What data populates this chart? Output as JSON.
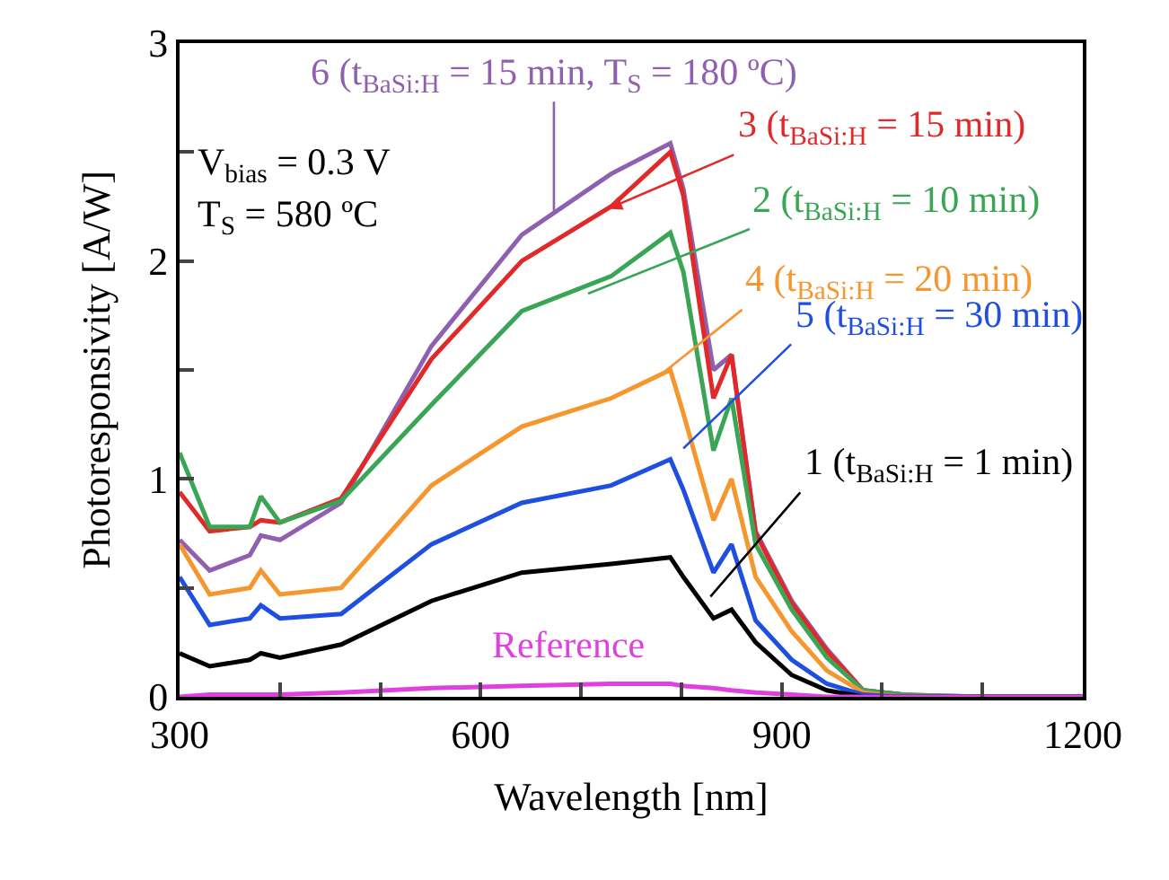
{
  "chart_data": {
    "type": "line",
    "xlabel": "Wavelength [nm]",
    "ylabel": "Photoresponsivity [A/W]",
    "x": [
      300,
      330,
      370,
      381,
      400,
      461,
      551,
      641,
      730,
      789,
      802,
      832,
      850,
      874,
      910,
      945,
      981,
      1020,
      1100,
      1200
    ],
    "series": [
      {
        "color": "#8f5fb0",
        "values": [
          0.72,
          0.58,
          0.65,
          0.74,
          0.72,
          0.89,
          1.61,
          2.12,
          2.4,
          2.54,
          2.33,
          1.5,
          1.57,
          0.76,
          0.44,
          0.22,
          0.03,
          0.01,
          0,
          0
        ]
      },
      {
        "color": "#e02a2a",
        "values": [
          0.94,
          0.76,
          0.78,
          0.81,
          0.8,
          0.91,
          1.55,
          2.0,
          2.25,
          2.5,
          2.3,
          1.37,
          1.57,
          0.75,
          0.43,
          0.21,
          0.03,
          0.01,
          null,
          null
        ]
      },
      {
        "color": "#3aa655",
        "values": [
          1.12,
          0.78,
          0.78,
          0.92,
          0.8,
          0.9,
          1.34,
          1.77,
          1.93,
          2.13,
          1.95,
          1.13,
          1.37,
          0.7,
          0.4,
          0.18,
          0.03,
          0.01,
          0,
          0
        ]
      },
      {
        "color": "#f5962e",
        "values": [
          0.7,
          0.47,
          0.5,
          0.58,
          0.47,
          0.5,
          0.97,
          1.24,
          1.37,
          1.5,
          1.3,
          0.81,
          1.0,
          0.55,
          0.3,
          0.12,
          0.02,
          0,
          0,
          0
        ]
      },
      {
        "color": "#1f4fe0",
        "values": [
          0.55,
          0.33,
          0.36,
          0.42,
          0.36,
          0.38,
          0.7,
          0.89,
          0.97,
          1.09,
          0.95,
          0.57,
          0.7,
          0.35,
          0.17,
          0.06,
          0.01,
          0,
          0,
          0
        ]
      },
      {
        "color": "#000000",
        "values": [
          0.2,
          0.14,
          0.17,
          0.2,
          0.18,
          0.24,
          0.44,
          0.57,
          0.61,
          0.64,
          0.55,
          0.36,
          0.4,
          0.25,
          0.1,
          0.03,
          0,
          0,
          0,
          0
        ]
      },
      {
        "color": "#e040e0",
        "values": [
          0.0,
          0.01,
          0.01,
          0.01,
          0.01,
          0.02,
          0.04,
          0.05,
          0.06,
          0.06,
          0.05,
          0.04,
          0.03,
          0.02,
          0.01,
          0,
          0,
          0,
          0,
          0
        ]
      }
    ],
    "annotations": [
      {
        "text": "6 (t$_{BaSi:H}$ = 15 min, T$_{S}$ = 180 ºC)",
        "x": 673,
        "y": 2.22
      },
      {
        "text": "3 (t$_{BaSi:H}$ = 15 min)",
        "x": 727,
        "y": 2.24
      },
      {
        "text": "2 (t$_{BaSi:H}$ = 10 min)",
        "x": 707,
        "y": 1.85
      },
      {
        "text": "4 (t$_{BaSi:H}$ = 20 min)",
        "x": 780,
        "y": 1.48
      },
      {
        "text": "5 (t$_{BaSi:H}$ = 30 min)",
        "x": 802,
        "y": 1.14
      },
      {
        "text": "1 (t$_{BaSi:H}$ = 1 min)",
        "x": 829,
        "y": 0.46
      },
      "Reference",
      "V$_{bias}$ = 0.3 V",
      "T$_{S}$ = 580 ºC"
    ],
    "xlim": [
      300,
      1200
    ],
    "ylim": [
      0,
      3
    ],
    "xticks": [
      300,
      {
        "value": 400,
        "label": null
      },
      {
        "value": 500,
        "label": null
      },
      600,
      {
        "value": 700,
        "label": null
      },
      {
        "value": 800,
        "label": null
      },
      900,
      {
        "value": 1000,
        "label": null
      },
      {
        "value": 1100,
        "label": null
      },
      1200
    ],
    "yticks": [
      0,
      {
        "value": 0.5,
        "label": null
      },
      1,
      {
        "value": 1.5,
        "label": null
      },
      2,
      {
        "value": 2.5,
        "label": null
      },
      3
    ],
    "marker": "none",
    "line_style": "solid"
  }
}
